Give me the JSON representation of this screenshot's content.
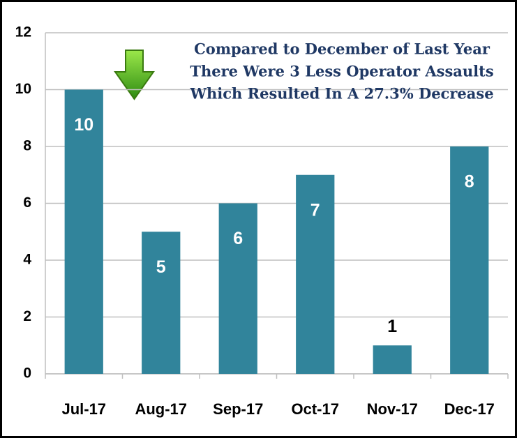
{
  "chart_data": {
    "type": "bar",
    "annotation": [
      "Compared to December of Last Year",
      "There Were 3 Less Operator Assaults",
      "Which Resulted In A 27.3% Decrease"
    ],
    "categories": [
      "Jul-17",
      "Aug-17",
      "Sep-17",
      "Oct-17",
      "Nov-17",
      "Dec-17"
    ],
    "values": [
      10,
      5,
      6,
      7,
      1,
      8
    ],
    "color": "#31849b",
    "ylim": [
      0,
      12
    ],
    "yticks": [
      0,
      2,
      4,
      6,
      8,
      10,
      12
    ],
    "grid": true
  }
}
